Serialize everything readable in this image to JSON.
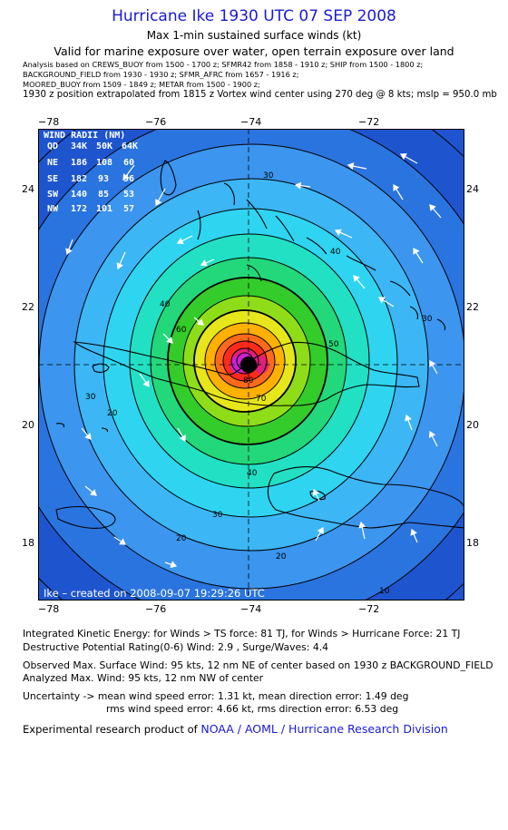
{
  "header": {
    "title": "Hurricane Ike 1930 UTC 07 SEP 2008",
    "subtitle1": "Max 1-min sustained surface winds (kt)",
    "subtitle2": "Valid for marine exposure over water, open terrain exposure over land",
    "analysis_lines": [
      "Analysis based on  CREWS_BUOY from 1500 - 1700 z;  SFMR42 from 1858 - 1910 z;  SHIP from 1500 - 1800 z;",
      "BACKGROUND_FIELD from 1930 - 1930 z;   SFMR_AFRC from 1657 - 1916 z;",
      "MOORED_BUOY from 1509 - 1849 z;  METAR from 1500 - 1900 z;"
    ],
    "position_line": "1930 z position extrapolated from 1815 z Vortex wind center using 270 deg @ 8 kts; mslp = 950.0 mb"
  },
  "axes": {
    "lon_labels": [
      "−78",
      "−76",
      "−74",
      "−72"
    ],
    "lat_labels": [
      "24",
      "22",
      "20",
      "18"
    ]
  },
  "wind_radii": {
    "title": "WIND RADII (NM)",
    "header": [
      "QD",
      "34K",
      "50K",
      "64K"
    ],
    "rows": [
      [
        "NE",
        "186",
        "108",
        "60"
      ],
      [
        "SE",
        "182",
        "93",
        "56"
      ],
      [
        "SW",
        "140",
        "85",
        "53"
      ],
      [
        "NW",
        "172",
        "101",
        "57"
      ]
    ]
  },
  "contour_labels": [
    "30",
    "40",
    "30",
    "40",
    "60",
    "50",
    "70",
    "80",
    "20",
    "40",
    "30",
    "20",
    "20",
    "30",
    "10"
  ],
  "map_caption": "Ike – created on 2008-09-07 19:29:26 UTC",
  "stats": {
    "ike": "Integrated Kinetic Energy:  for Winds > TS force: 81 TJ,  for Winds > Hurricane Force: 21 TJ",
    "dpr": "Destructive Potential Rating(0-6)   Wind: 2.9 , Surge/Waves: 4.4",
    "observed": "Observed Max. Surface Wind: 95 kts, 12 nm NE of center based on 1930 z BACKGROUND_FIELD",
    "analyzed": "Analyzed Max. Wind: 95 kts, 12 nm NW of center",
    "uncertainty1": "Uncertainty -> mean wind speed error: 1.31 kt,   mean direction error: 1.49 deg",
    "uncertainty2": "rms wind speed error: 4.66 kt,   rms direction error: 6.53 deg"
  },
  "credit": {
    "prefix": "Experimental research product of",
    "org": "NOAA / AOML / Hurricane Research Division"
  },
  "colors": {
    "ring_colors": [
      "#1e55cf",
      "#2a74e0",
      "#3c95ee",
      "#3cb6f5",
      "#2fd4f1",
      "#22e0c4",
      "#22d87a",
      "#33cc2a",
      "#8fdc18",
      "#e6e61a",
      "#ffb000",
      "#ff6a1a",
      "#ff2a1a",
      "#e0207a",
      "#d020d0"
    ],
    "title_blue": "#1a1ad6"
  }
}
